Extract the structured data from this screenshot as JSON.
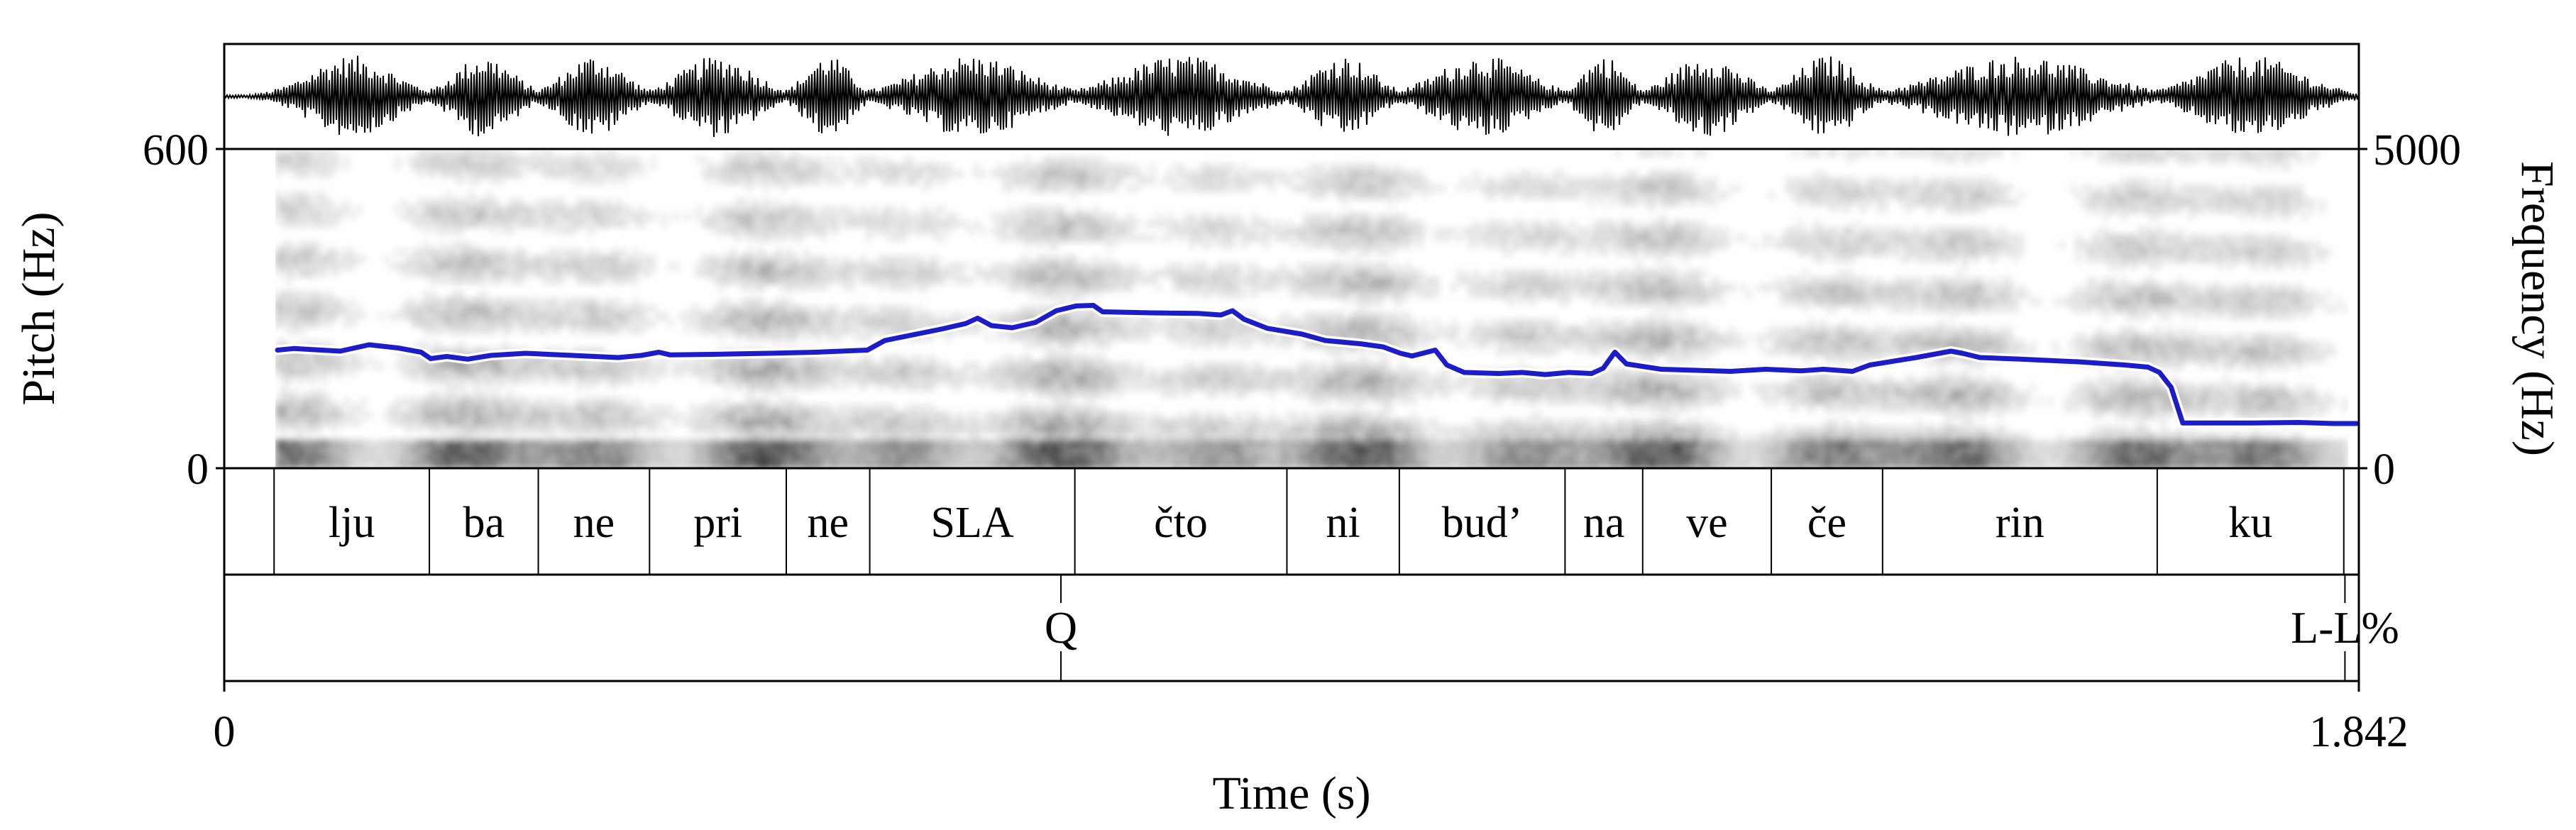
{
  "chart_data": {
    "type": "line",
    "xlabel": "Time (s)",
    "ylabel_left": "Pitch (Hz)",
    "ylabel_right": "Frequency (Hz)",
    "xlim": [
      0,
      1.842
    ],
    "ylim_pitch": [
      0,
      600
    ],
    "ylim_frequency": [
      0,
      5000
    ],
    "x_ticks": [
      "0",
      "1.842"
    ],
    "y_ticks_pitch": [
      "0",
      "600"
    ],
    "y_ticks_frequency": [
      "0",
      "5000"
    ],
    "series": [
      {
        "color": "#1c1cc8",
        "points": [
          [
            0.046,
            222
          ],
          [
            0.06,
            225
          ],
          [
            0.1,
            220
          ],
          [
            0.125,
            232
          ],
          [
            0.15,
            226
          ],
          [
            0.17,
            218
          ],
          [
            0.178,
            206
          ],
          [
            0.192,
            210
          ],
          [
            0.21,
            205
          ],
          [
            0.23,
            212
          ],
          [
            0.26,
            216
          ],
          [
            0.3,
            212
          ],
          [
            0.34,
            208
          ],
          [
            0.36,
            212
          ],
          [
            0.375,
            218
          ],
          [
            0.385,
            213
          ],
          [
            0.42,
            214
          ],
          [
            0.47,
            216
          ],
          [
            0.51,
            218
          ],
          [
            0.555,
            222
          ],
          [
            0.57,
            240
          ],
          [
            0.62,
            262
          ],
          [
            0.64,
            272
          ],
          [
            0.65,
            282
          ],
          [
            0.662,
            268
          ],
          [
            0.68,
            264
          ],
          [
            0.7,
            274
          ],
          [
            0.718,
            296
          ],
          [
            0.735,
            305
          ],
          [
            0.75,
            306
          ],
          [
            0.758,
            294
          ],
          [
            0.8,
            292
          ],
          [
            0.84,
            291
          ],
          [
            0.86,
            288
          ],
          [
            0.87,
            296
          ],
          [
            0.88,
            280
          ],
          [
            0.9,
            263
          ],
          [
            0.93,
            252
          ],
          [
            0.95,
            240
          ],
          [
            0.98,
            234
          ],
          [
            1.0,
            228
          ],
          [
            1.015,
            216
          ],
          [
            1.025,
            211
          ],
          [
            1.045,
            222
          ],
          [
            1.055,
            194
          ],
          [
            1.07,
            180
          ],
          [
            1.1,
            178
          ],
          [
            1.12,
            180
          ],
          [
            1.14,
            176
          ],
          [
            1.16,
            180
          ],
          [
            1.18,
            178
          ],
          [
            1.19,
            188
          ],
          [
            1.2,
            218
          ],
          [
            1.21,
            196
          ],
          [
            1.24,
            186
          ],
          [
            1.27,
            184
          ],
          [
            1.3,
            182
          ],
          [
            1.33,
            186
          ],
          [
            1.36,
            183
          ],
          [
            1.38,
            186
          ],
          [
            1.405,
            182
          ],
          [
            1.42,
            194
          ],
          [
            1.46,
            208
          ],
          [
            1.49,
            220
          ],
          [
            1.5,
            216
          ],
          [
            1.515,
            208
          ],
          [
            1.55,
            205
          ],
          [
            1.6,
            200
          ],
          [
            1.64,
            194
          ],
          [
            1.66,
            190
          ],
          [
            1.67,
            180
          ],
          [
            1.68,
            152
          ],
          [
            1.69,
            85
          ],
          [
            1.75,
            85
          ],
          [
            1.79,
            86
          ],
          [
            1.82,
            84
          ],
          [
            1.84,
            84
          ]
        ]
      }
    ]
  },
  "tiers": [
    {
      "intervals": [
        {
          "label": "",
          "start": 0.0,
          "end": 0.043
        },
        {
          "label": "lju",
          "start": 0.043,
          "end": 0.177
        },
        {
          "label": "ba",
          "start": 0.177,
          "end": 0.271
        },
        {
          "label": "ne",
          "start": 0.271,
          "end": 0.367
        },
        {
          "label": "pri",
          "start": 0.367,
          "end": 0.485
        },
        {
          "label": "ne",
          "start": 0.485,
          "end": 0.557
        },
        {
          "label": "SLA",
          "start": 0.557,
          "end": 0.734
        },
        {
          "label": "čto",
          "start": 0.734,
          "end": 0.917
        },
        {
          "label": "ni",
          "start": 0.917,
          "end": 1.014
        },
        {
          "label": "bud’",
          "start": 1.014,
          "end": 1.157
        },
        {
          "label": "na",
          "start": 1.157,
          "end": 1.224
        },
        {
          "label": "ve",
          "start": 1.224,
          "end": 1.335
        },
        {
          "label": "če",
          "start": 1.335,
          "end": 1.431
        },
        {
          "label": "rin",
          "start": 1.431,
          "end": 1.668
        },
        {
          "label": "ku",
          "start": 1.668,
          "end": 1.829
        },
        {
          "label": "",
          "start": 1.829,
          "end": 1.842
        }
      ]
    },
    {
      "points": [
        {
          "label": "Q",
          "time": 0.722
        },
        {
          "label": "L-L%",
          "time": 1.83
        }
      ]
    }
  ]
}
